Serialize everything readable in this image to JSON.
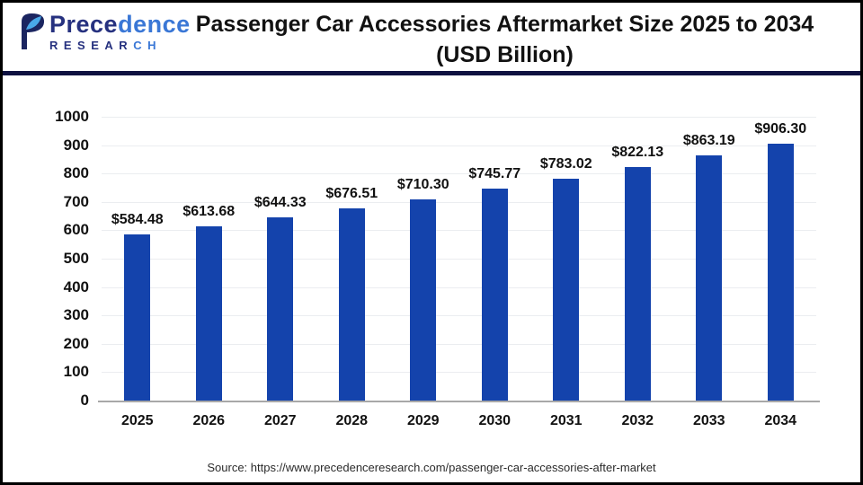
{
  "logo": {
    "name_part1": "Prece",
    "name_part2": "dence",
    "sub_part1": "RESEAR",
    "sub_part2": "CH"
  },
  "header": {
    "title_line1": "Passenger Car Accessories Aftermarket Size 2025 to 2034",
    "title_line2": "(USD Billion)"
  },
  "footer": {
    "source": "Source: https://www.precedenceresearch.com/passenger-car-accessories-after-market"
  },
  "colors": {
    "bar": "#1443ac",
    "accent_navy": "#0e1140",
    "grid": "#ebedf0",
    "axis_line": "#a8a8a8",
    "text": "#111111",
    "logo_navy": "#26317f",
    "logo_blue": "#3a77d6"
  },
  "chart_data": {
    "type": "bar",
    "title": "Passenger Car Accessories Aftermarket Size 2025 to 2034 (USD Billion)",
    "xlabel": "",
    "ylabel": "",
    "categories": [
      "2025",
      "2026",
      "2027",
      "2028",
      "2029",
      "2030",
      "2031",
      "2032",
      "2033",
      "2034"
    ],
    "values": [
      584.48,
      613.68,
      644.33,
      676.51,
      710.3,
      745.77,
      783.02,
      822.13,
      863.19,
      906.3
    ],
    "value_labels": [
      "$584.48",
      "$613.68",
      "$644.33",
      "$676.51",
      "$710.30",
      "$745.77",
      "$783.02",
      "$822.13",
      "$863.19",
      "$906.30"
    ],
    "ylim": [
      0,
      1000
    ],
    "yticks": [
      0,
      100,
      200,
      300,
      400,
      500,
      600,
      700,
      800,
      900,
      1000
    ],
    "grid": "horizontal",
    "legend": "none"
  }
}
